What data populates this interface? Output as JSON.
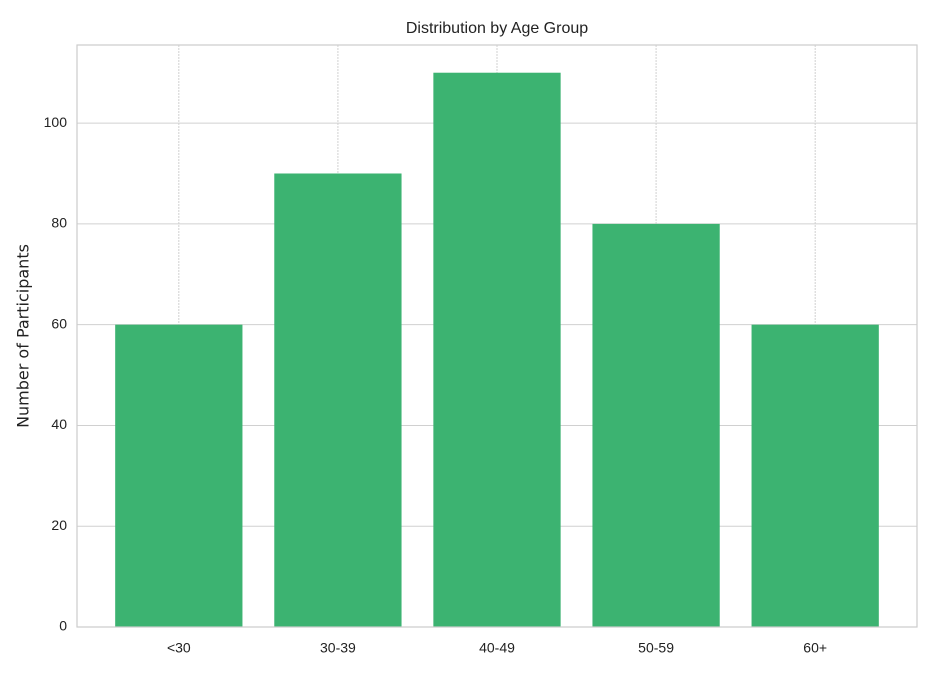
{
  "chart_data": {
    "type": "bar",
    "title": "Distribution by Age Group",
    "y_label": "Number of Participants",
    "categories": [
      "<30",
      "30-39",
      "40-49",
      "50-59",
      "60+"
    ],
    "values": [
      60,
      90,
      110,
      80,
      60
    ],
    "color": "#3cb371",
    "ylim": [
      0,
      115.5
    ],
    "yticks": [
      0,
      20,
      40,
      60,
      80,
      100
    ],
    "grid": true
  }
}
